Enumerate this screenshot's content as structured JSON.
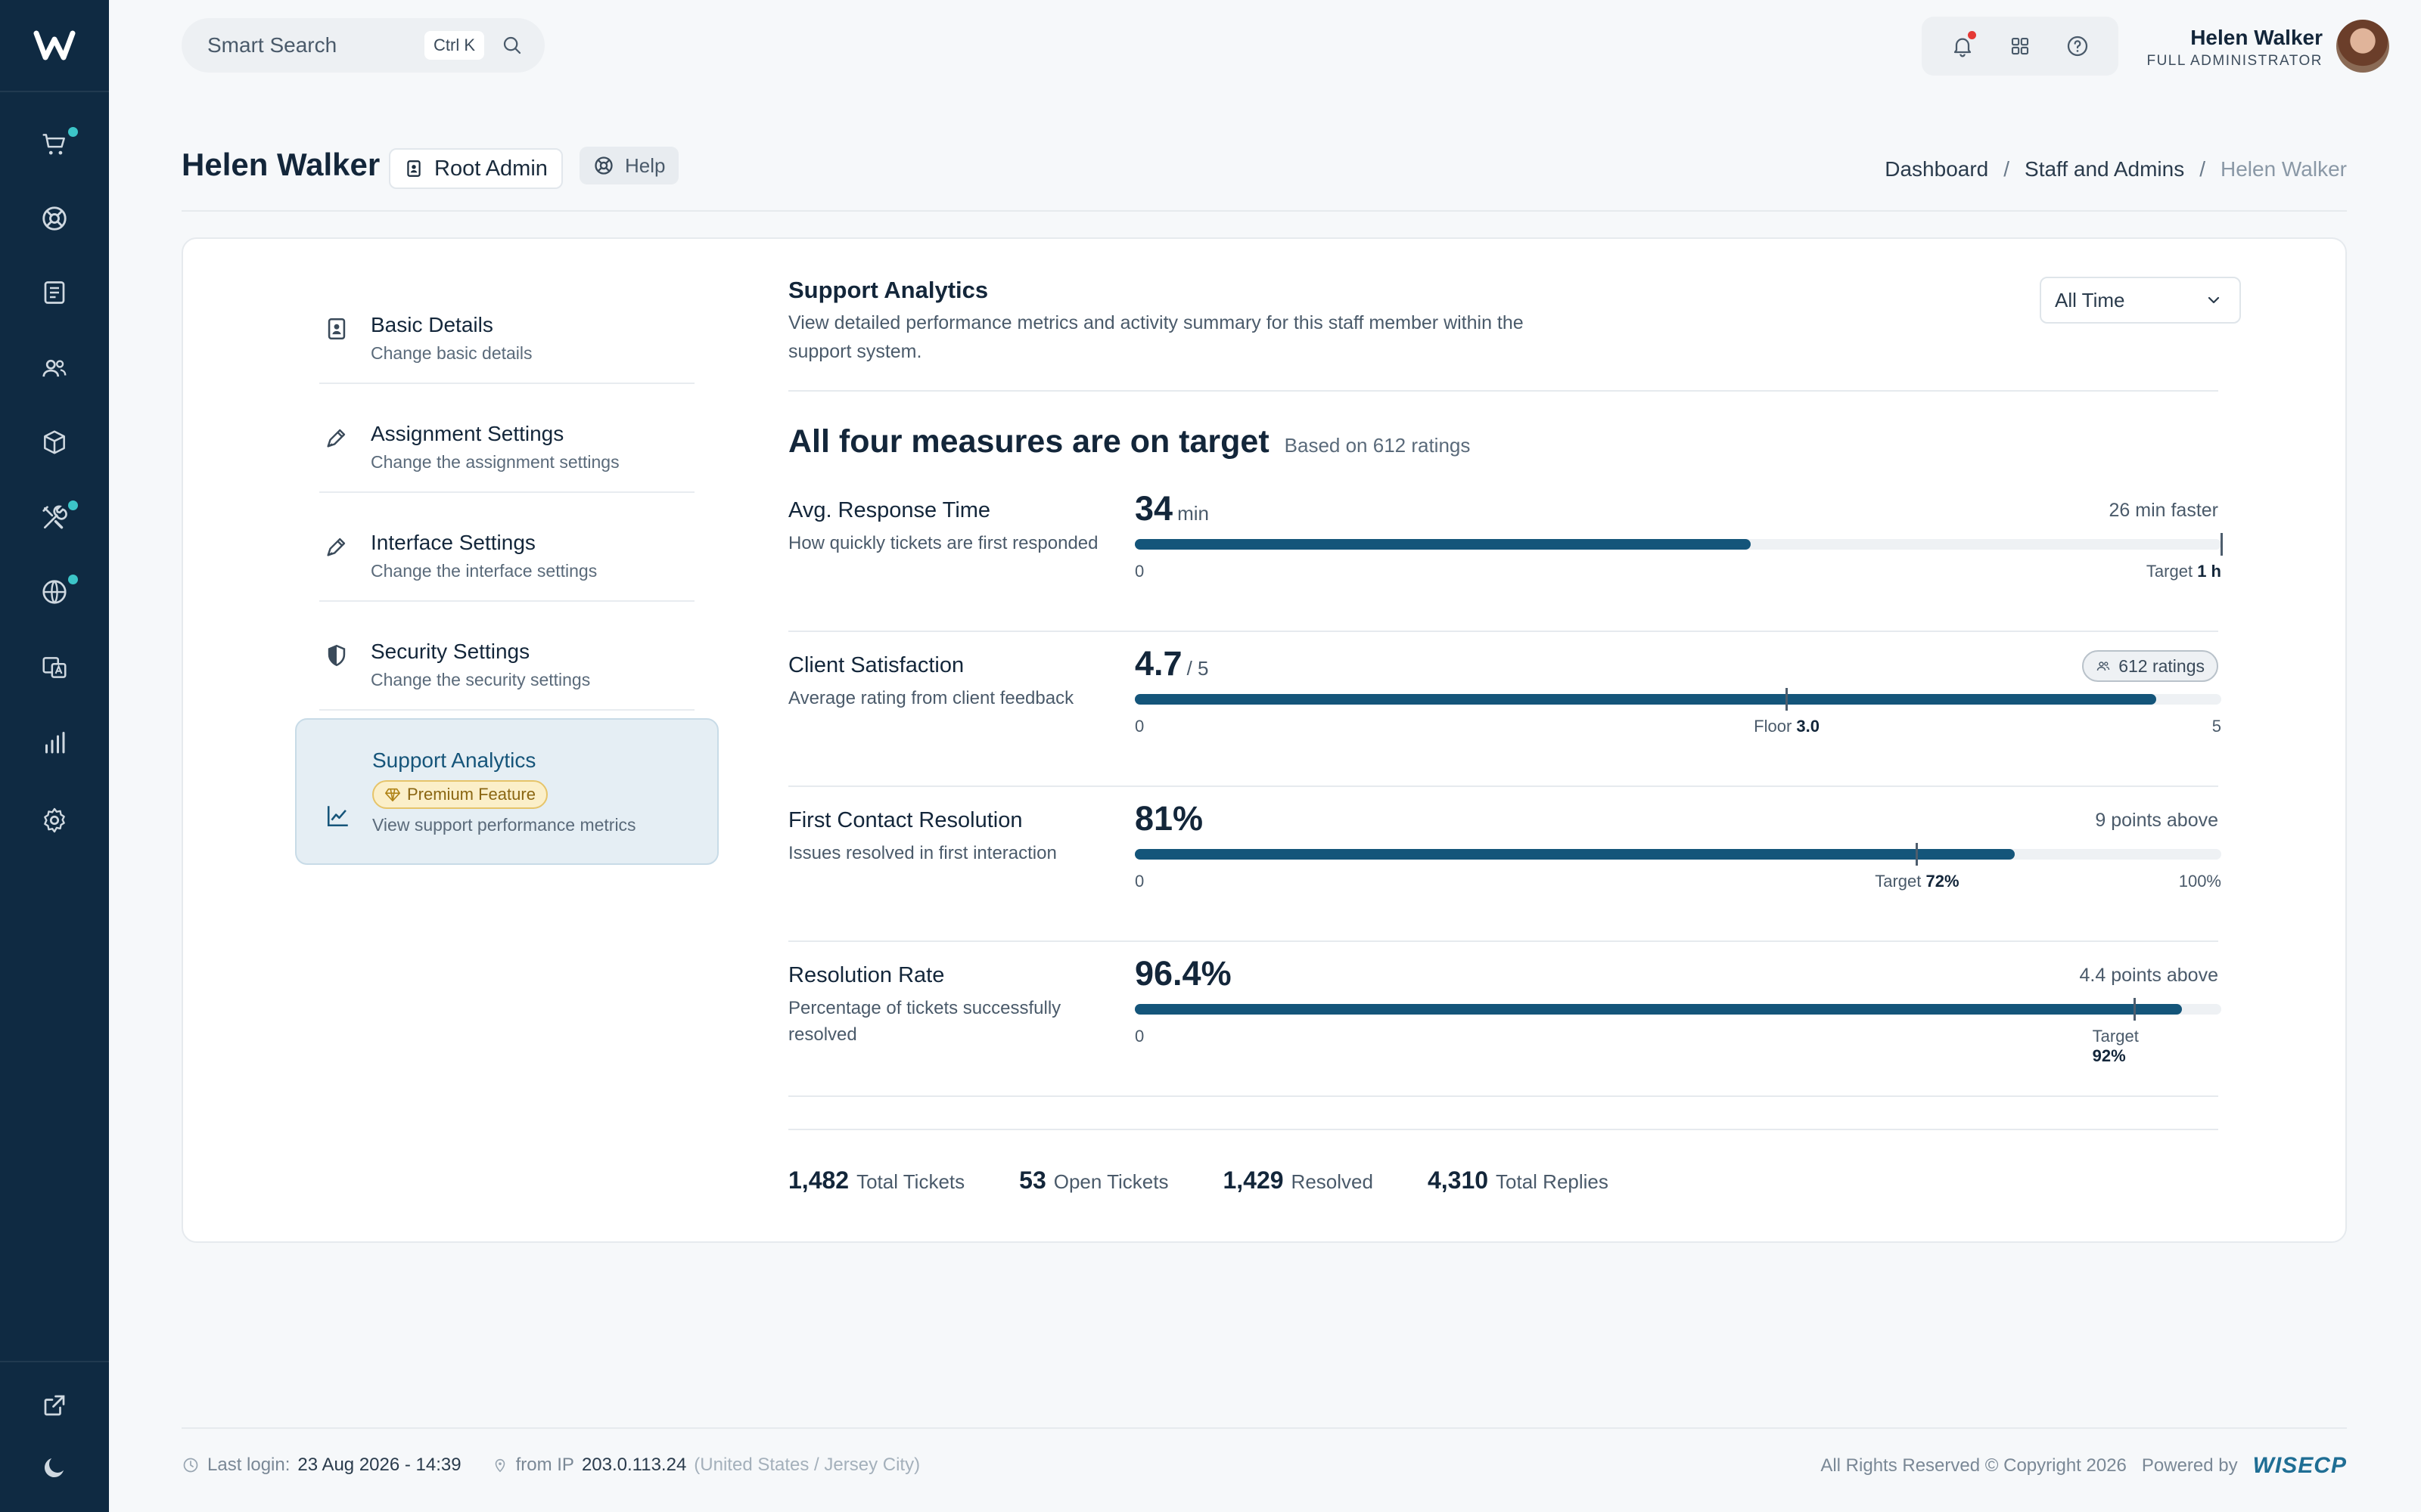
{
  "search": {
    "placeholder": "Smart Search",
    "shortcut": "Ctrl K"
  },
  "user": {
    "name": "Helen Walker",
    "role": "FULL ADMINISTRATOR"
  },
  "page": {
    "title": "Helen Walker",
    "role_chip": "Root Admin",
    "help_chip": "Help",
    "breadcrumb": [
      "Dashboard",
      "Staff and Admins",
      "Helen Walker"
    ]
  },
  "settings_nav": [
    {
      "title": "Basic Details",
      "sub": "Change basic details"
    },
    {
      "title": "Assignment Settings",
      "sub": "Change the assignment settings"
    },
    {
      "title": "Interface Settings",
      "sub": "Change the interface settings"
    },
    {
      "title": "Security Settings",
      "sub": "Change the security settings"
    },
    {
      "title": "Support Analytics",
      "badge": "Premium Feature",
      "sub": "View support performance metrics"
    }
  ],
  "analytics": {
    "title": "Support Analytics",
    "description": "View detailed performance metrics and activity summary for this staff member within the support system.",
    "range": "All Time",
    "summary_title": "All four measures are on target",
    "summary_sub": "Based on 612 ratings",
    "metrics": [
      {
        "name": "Avg. Response Time",
        "desc": "How quickly tickets are first responded",
        "value": "34",
        "unit": "min",
        "right": "26 min faster",
        "fill": 0.567,
        "marker": 1.0,
        "scale_min": "0",
        "marker_label": "Target",
        "marker_value": "1 h",
        "scale_max": ""
      },
      {
        "name": "Client Satisfaction",
        "desc": "Average rating from client feedback",
        "value": "4.7",
        "unit": "/ 5",
        "right": "612 ratings",
        "fill": 0.94,
        "marker": 0.6,
        "scale_min": "0",
        "marker_label": "Floor",
        "marker_value": "3.0",
        "scale_max": "5"
      },
      {
        "name": "First Contact Resolution",
        "desc": "Issues resolved in first interaction",
        "value": "81%",
        "unit": "",
        "right": "9 points above",
        "fill": 0.81,
        "marker": 0.72,
        "scale_min": "0",
        "marker_label": "Target",
        "marker_value": "72%",
        "scale_max": "100%"
      },
      {
        "name": "Resolution Rate",
        "desc": "Percentage of tickets successfully resolved",
        "value": "96.4%",
        "unit": "",
        "right": "4.4 points above",
        "fill": 0.964,
        "marker": 0.92,
        "scale_min": "0",
        "marker_label": "Target",
        "marker_value": "92%",
        "scale_max": ""
      }
    ],
    "stats": [
      {
        "value": "1,482",
        "label": "Total Tickets"
      },
      {
        "value": "53",
        "label": "Open Tickets"
      },
      {
        "value": "1,429",
        "label": "Resolved"
      },
      {
        "value": "4,310",
        "label": "Total Replies"
      }
    ]
  },
  "footer": {
    "last_login_label": "Last login:",
    "last_login": "23 Aug 2026 - 14:39",
    "ip_label": "from IP",
    "ip": "203.0.113.24",
    "location": "(United States / Jersey City)",
    "copyright": "All Rights Reserved © Copyright 2026",
    "powered_by": "Powered by",
    "brand": "WISECP"
  },
  "colors": {
    "rail": "#0f2a42",
    "accent": "#14557a",
    "notify": "#e53935",
    "rail_dot": "#3cc5c8"
  }
}
